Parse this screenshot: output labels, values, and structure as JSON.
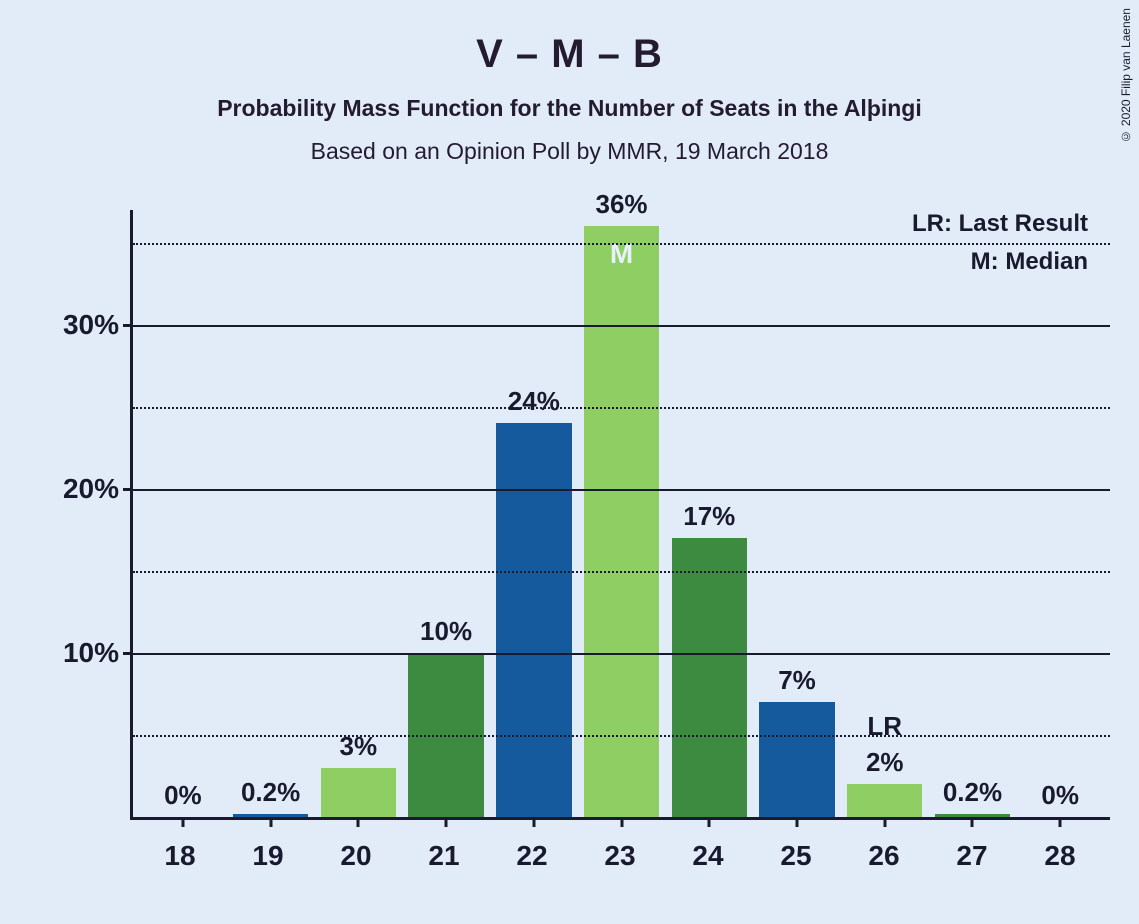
{
  "background_color": "#e2ecf8",
  "title_color": "#231b30",
  "title": "V – M – B",
  "subtitle1": "Probability Mass Function for the Number of Seats in the Alþingi",
  "subtitle2": "Based on an Opinion Poll by MMR, 19 March 2018",
  "copyright": "© 2020 Filip van Laenen",
  "legend_lr": "LR: Last Result",
  "legend_m": "M: Median",
  "y_axis": {
    "max": 37,
    "major_ticks": [
      10,
      20,
      30
    ],
    "minor_ticks": [
      5,
      15,
      25,
      35
    ],
    "major_labels": [
      "10%",
      "20%",
      "30%"
    ]
  },
  "colors": {
    "blue": "#165a9e",
    "dark_green": "#3d8b41",
    "light_green": "#8fce63"
  },
  "bars": [
    {
      "x": "18",
      "value": 0,
      "label": "0%",
      "color": "light_green",
      "marker": "",
      "lr": ""
    },
    {
      "x": "19",
      "value": 0.2,
      "label": "0.2%",
      "color": "blue",
      "marker": "",
      "lr": ""
    },
    {
      "x": "20",
      "value": 3,
      "label": "3%",
      "color": "light_green",
      "marker": "",
      "lr": ""
    },
    {
      "x": "21",
      "value": 10,
      "label": "10%",
      "color": "dark_green",
      "marker": "",
      "lr": ""
    },
    {
      "x": "22",
      "value": 24,
      "label": "24%",
      "color": "blue",
      "marker": "",
      "lr": ""
    },
    {
      "x": "23",
      "value": 36,
      "label": "36%",
      "color": "light_green",
      "marker": "M",
      "lr": ""
    },
    {
      "x": "24",
      "value": 17,
      "label": "17%",
      "color": "dark_green",
      "marker": "",
      "lr": ""
    },
    {
      "x": "25",
      "value": 7,
      "label": "7%",
      "color": "blue",
      "marker": "",
      "lr": ""
    },
    {
      "x": "26",
      "value": 2,
      "label": "2%",
      "color": "light_green",
      "marker": "",
      "lr": "LR"
    },
    {
      "x": "27",
      "value": 0.2,
      "label": "0.2%",
      "color": "dark_green",
      "marker": "",
      "lr": ""
    },
    {
      "x": "28",
      "value": 0,
      "label": "0%",
      "color": "blue",
      "marker": "",
      "lr": ""
    }
  ]
}
